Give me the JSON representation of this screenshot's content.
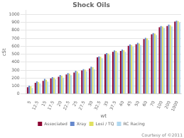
{
  "chart_data": {
    "type": "bar",
    "title": "Shock Oils",
    "xlabel": "wt",
    "ylabel": "cSt",
    "annotation": "Courtesy of ©2011",
    "categories": [
      "5",
      "12.5",
      "15",
      "17.5",
      "20",
      "22.5",
      "25",
      "27.5",
      "30",
      "32.5",
      "35",
      "37.5",
      "40",
      "45",
      "50",
      "60",
      "70",
      "100",
      "200",
      "1000"
    ],
    "series": [
      {
        "name": "Associated",
        "color": "#8B0030",
        "values": [
          85,
          140,
          165,
          195,
          215,
          245,
          270,
          295,
          320,
          460,
          500,
          530,
          540,
          605,
          625,
          690,
          750,
          840,
          855,
          910
        ]
      },
      {
        "name": "Xray",
        "color": "#6688CC",
        "values": [
          105,
          158,
          188,
          212,
          238,
          262,
          292,
          312,
          342,
          472,
          515,
          548,
          558,
          622,
          642,
          705,
          765,
          855,
          872,
          922
        ]
      },
      {
        "name": "Losi / TQ",
        "color": "#E0E060",
        "values": [
          95,
          148,
          178,
          205,
          228,
          255,
          282,
          305,
          335,
          467,
          508,
          540,
          550,
          615,
          635,
          698,
          758,
          848,
          863,
          916
        ]
      },
      {
        "name": "RC Racing",
        "color": "#B0D8F0",
        "values": [
          75,
          130,
          155,
          185,
          205,
          235,
          260,
          285,
          310,
          450,
          490,
          520,
          530,
          595,
          615,
          678,
          740,
          830,
          848,
          900
        ]
      }
    ],
    "ylim": [
      0,
      1050
    ],
    "yticks": [
      0,
      100,
      200,
      300,
      400,
      500,
      600,
      700,
      800,
      900,
      1000
    ],
    "grid": true,
    "legend": "bottom"
  }
}
